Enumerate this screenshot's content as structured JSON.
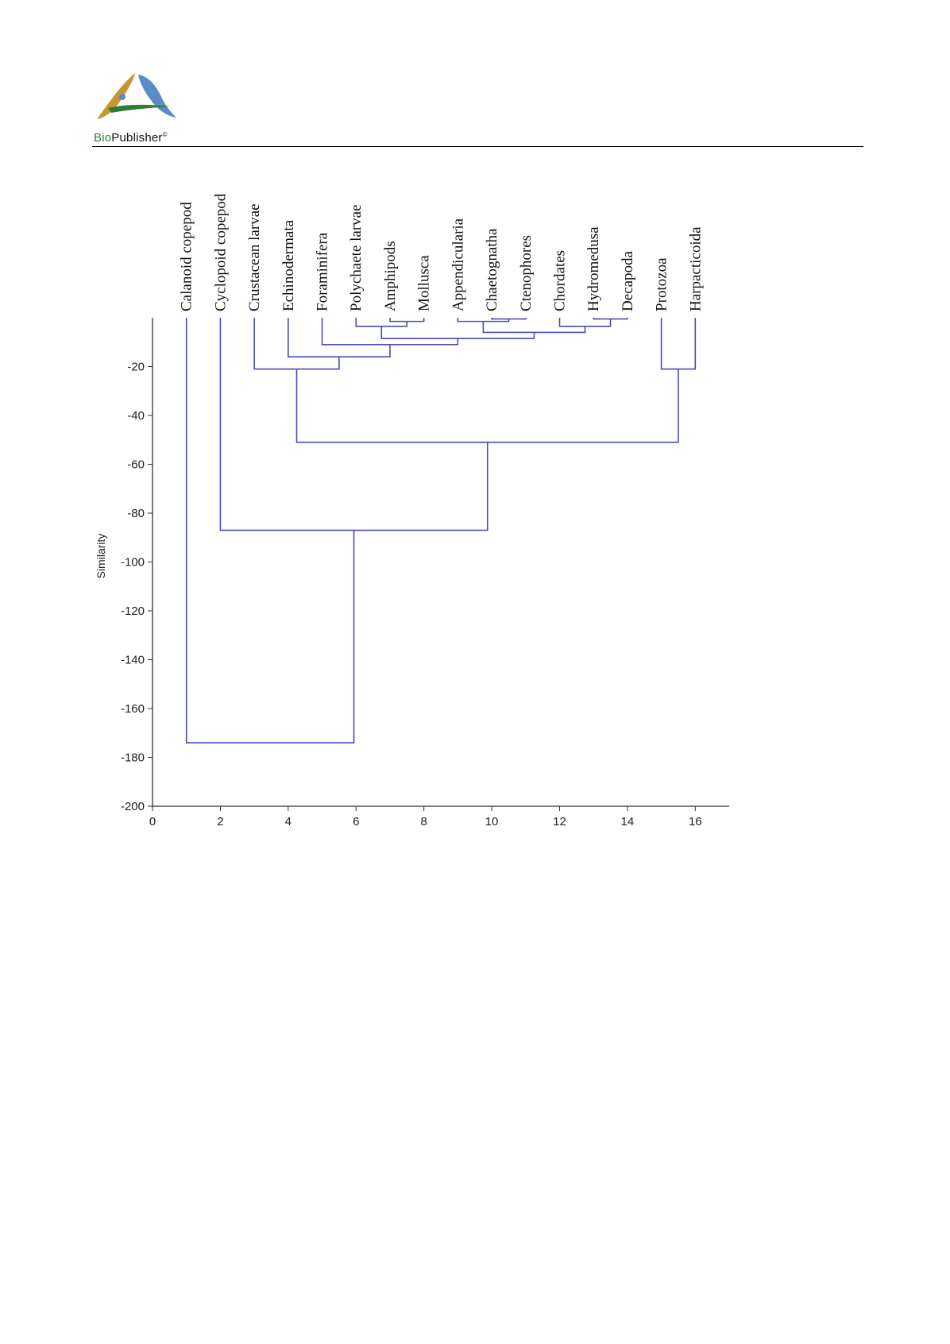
{
  "header": {
    "brand_prefix": "Bio",
    "brand_suffix": "Publisher",
    "brand_mark": "©",
    "logo_icon": "biopublisher-logo-icon"
  },
  "colors": {
    "branch": "#4b4bb8",
    "axis": "#333333",
    "logo_gold": "#c8962e",
    "logo_blue": "#5a8ac8",
    "logo_green": "#2e7d32"
  },
  "chart_data": {
    "type": "dendrogram",
    "title": "",
    "xlabel": "",
    "ylabel": "Similarity",
    "xlim": [
      0,
      17
    ],
    "ylim": [
      -200,
      0
    ],
    "x_ticks": [
      0,
      2,
      4,
      6,
      8,
      10,
      12,
      14,
      16
    ],
    "y_ticks": [
      -20,
      -40,
      -60,
      -80,
      -100,
      -120,
      -140,
      -160,
      -180,
      -200
    ],
    "leaves": [
      {
        "label": "Calanoid copepod",
        "x": 1
      },
      {
        "label": "Cyclopoid copepod",
        "x": 2
      },
      {
        "label": "Crustacean larvae",
        "x": 3
      },
      {
        "label": "Echinodermata",
        "x": 4
      },
      {
        "label": "Foraminifera",
        "x": 5
      },
      {
        "label": "Polychaete larvae",
        "x": 6
      },
      {
        "label": "Amphipods",
        "x": 7
      },
      {
        "label": "Mollusca",
        "x": 8
      },
      {
        "label": "Appendicularia",
        "x": 9
      },
      {
        "label": "Chaetognatha",
        "x": 10
      },
      {
        "label": "Ctenophores",
        "x": 11
      },
      {
        "label": "Chordates",
        "x": 12
      },
      {
        "label": "Hydromedusa",
        "x": 13
      },
      {
        "label": "Decapoda",
        "x": 14
      },
      {
        "label": "Protozoa",
        "x": 15
      },
      {
        "label": "Harpacticoida",
        "x": 16
      }
    ],
    "merges": [
      {
        "id": "m1",
        "left": "Chaetognatha",
        "right": "Ctenophores",
        "y": -0.5
      },
      {
        "id": "m2",
        "left": "Hydromedusa",
        "right": "Decapoda",
        "y": -0.5
      },
      {
        "id": "m3",
        "left": "Amphipods",
        "right": "Mollusca",
        "y": -1.5
      },
      {
        "id": "m4",
        "left": "Appendicularia",
        "right": "m1",
        "y": -1.5
      },
      {
        "id": "m5",
        "left": "Polychaete larvae",
        "right": "m3",
        "y": -3.5
      },
      {
        "id": "m6",
        "left": "Chordates",
        "right": "m2",
        "y": -3.5
      },
      {
        "id": "m7",
        "left": "m4",
        "right": "m6",
        "y": -6
      },
      {
        "id": "m8",
        "left": "m5",
        "right": "m7",
        "y": -8.5
      },
      {
        "id": "m9",
        "left": "Foraminifera",
        "right": "m8",
        "y": -11
      },
      {
        "id": "m10",
        "left": "Echinodermata",
        "right": "m9",
        "y": -16
      },
      {
        "id": "m11",
        "left": "Crustacean larvae",
        "right": "m10",
        "y": -21
      },
      {
        "id": "m12",
        "left": "Protozoa",
        "right": "Harpacticoida",
        "y": -21
      },
      {
        "id": "m13",
        "left": "m11",
        "right": "m12",
        "y": -51
      },
      {
        "id": "m14",
        "left": "Cyclopoid copepod",
        "right": "m13",
        "y": -87
      },
      {
        "id": "m15",
        "left": "Calanoid copepod",
        "right": "m14",
        "y": -174
      }
    ]
  }
}
